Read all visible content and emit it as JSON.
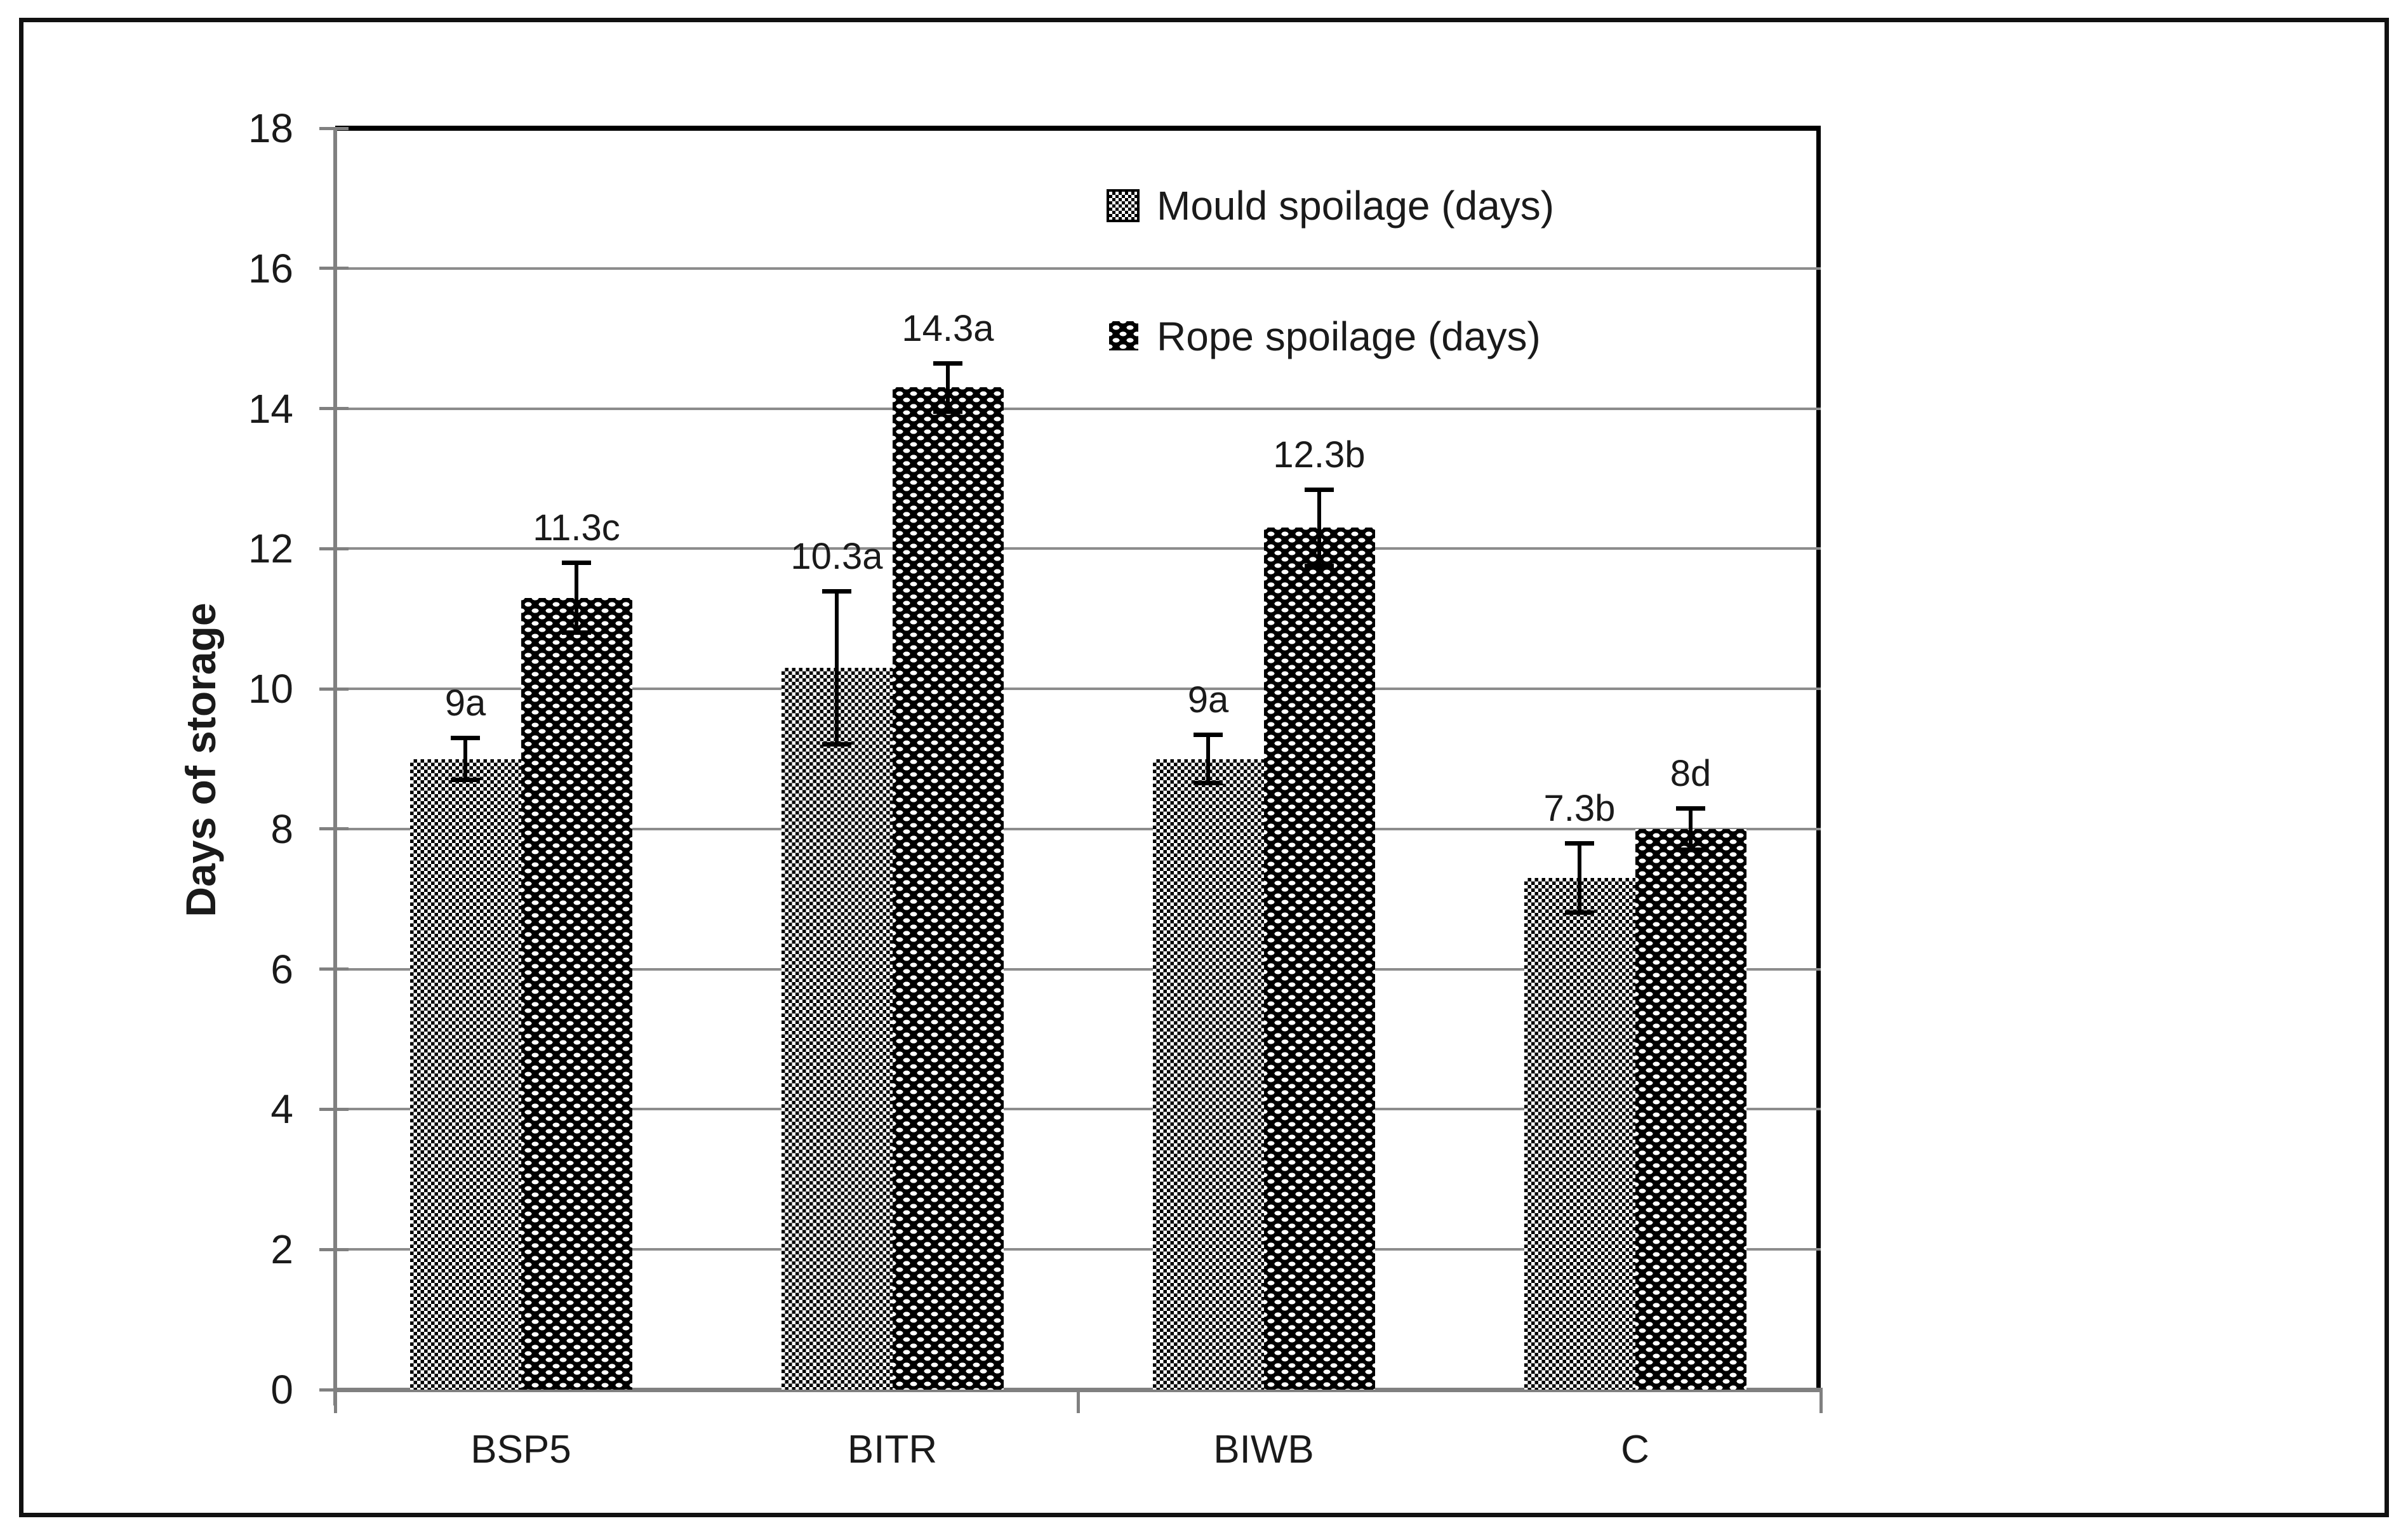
{
  "chart_data": {
    "type": "bar",
    "title": "",
    "categories": [
      "BSP5",
      "BITR",
      "BIWB",
      "C"
    ],
    "series": [
      {
        "name": "Mould spoilage (days)",
        "values": [
          9,
          10.3,
          9,
          7.3
        ],
        "errors": [
          0.3,
          1.1,
          0.35,
          0.5
        ],
        "point_labels": [
          "9a",
          "10.3a",
          "9a",
          "7.3b"
        ],
        "pattern": "light-checkerboard"
      },
      {
        "name": "Rope spoilage (days)",
        "values": [
          11.3,
          14.3,
          12.3,
          8
        ],
        "errors": [
          0.5,
          0.35,
          0.55,
          0.3
        ],
        "point_labels": [
          "11.3c",
          "14.3a",
          "12.3b",
          "8d"
        ],
        "pattern": "black-white-dots"
      }
    ],
    "xlabel": "",
    "ylabel": "Days of storage",
    "ylim": [
      0,
      18
    ],
    "yticks": [
      0,
      2,
      4,
      6,
      8,
      10,
      12,
      14,
      16,
      18
    ],
    "grid": "horizontal",
    "legend_position": "inside-top-right",
    "error_bars": true,
    "colors": {
      "grid": "#8c8c8c",
      "axis": "#808080",
      "plot_border": "#000000",
      "text": "#1a1a1a",
      "pattern_foreground": "#000000",
      "pattern_background": "#ffffff",
      "figure_border": "#111111",
      "background": "#ffffff"
    }
  }
}
